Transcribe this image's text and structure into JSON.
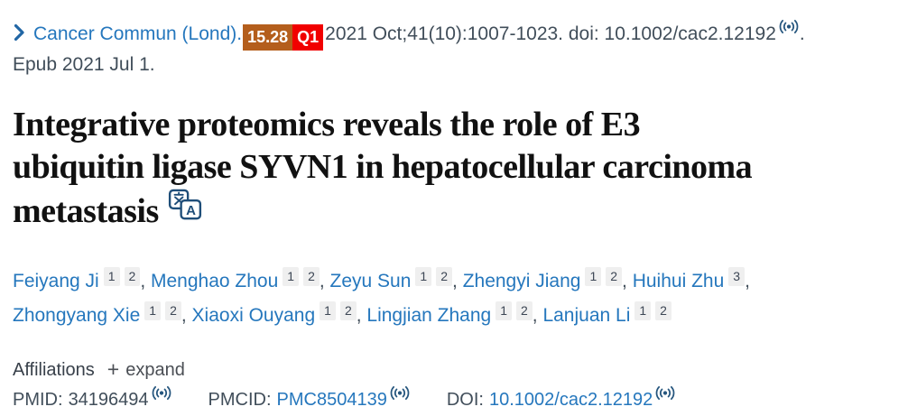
{
  "colors": {
    "link_blue": "#2577bd",
    "chevron_blue": "#2166a5",
    "text_dark": "#414e5a",
    "title_black": "#111111",
    "impact_factor_badge_bg": "#b45e1c",
    "quartile_badge_bg": "#f10000",
    "badge_text": "#ffffff",
    "signal_icon_navy": "#26567e",
    "chip_bg": "#efefef"
  },
  "citation": {
    "journal_link": "Cancer Commun (Lond).",
    "impact_factor_badge": "15.28",
    "quartile_badge": "Q1",
    "details": "2021 Oct;41(10):1007-1023. doi: 10.1002/cac2.12192",
    "period": ".",
    "epub_line": "Epub 2021 Jul 1."
  },
  "article": {
    "title": "Integrative proteomics reveals the role of E3 ubiquitin ligase SYVN1 in hepatocellular carcinoma metastasis",
    "title_lines": [
      "Integrative proteomics reveals the role of E3",
      "ubiquitin ligase SYVN1 in hepatocellular carcinoma",
      "metastasis"
    ],
    "translate_icon_letter": "A"
  },
  "authors": {
    "separator": ", ",
    "list": [
      {
        "name": "Feiyang Ji",
        "affiliations": [
          "1",
          "2"
        ]
      },
      {
        "name": "Menghao Zhou",
        "affiliations": [
          "1",
          "2"
        ]
      },
      {
        "name": "Zeyu Sun",
        "affiliations": [
          "1",
          "2"
        ]
      },
      {
        "name": "Zhengyi Jiang",
        "affiliations": [
          "1",
          "2"
        ]
      },
      {
        "name": "Huihui Zhu",
        "affiliations": [
          "3"
        ]
      },
      {
        "name": "Zhongyang Xie",
        "affiliations": [
          "1",
          "2"
        ]
      },
      {
        "name": "Xiaoxi Ouyang",
        "affiliations": [
          "1",
          "2"
        ]
      },
      {
        "name": "Lingjian Zhang",
        "affiliations": [
          "1",
          "2"
        ]
      },
      {
        "name": "Lanjuan Li",
        "affiliations": [
          "1",
          "2"
        ]
      }
    ]
  },
  "affiliations_bar": {
    "label": "Affiliations",
    "plus_icon": "+",
    "expand_label": "expand"
  },
  "identifiers": {
    "pmid": {
      "label": "PMID:",
      "value": "34196494"
    },
    "pmcid": {
      "label": "PMCID:",
      "value": "PMC8504139"
    },
    "doi": {
      "label": "DOI:",
      "value": "10.1002/cac2.12192"
    }
  }
}
